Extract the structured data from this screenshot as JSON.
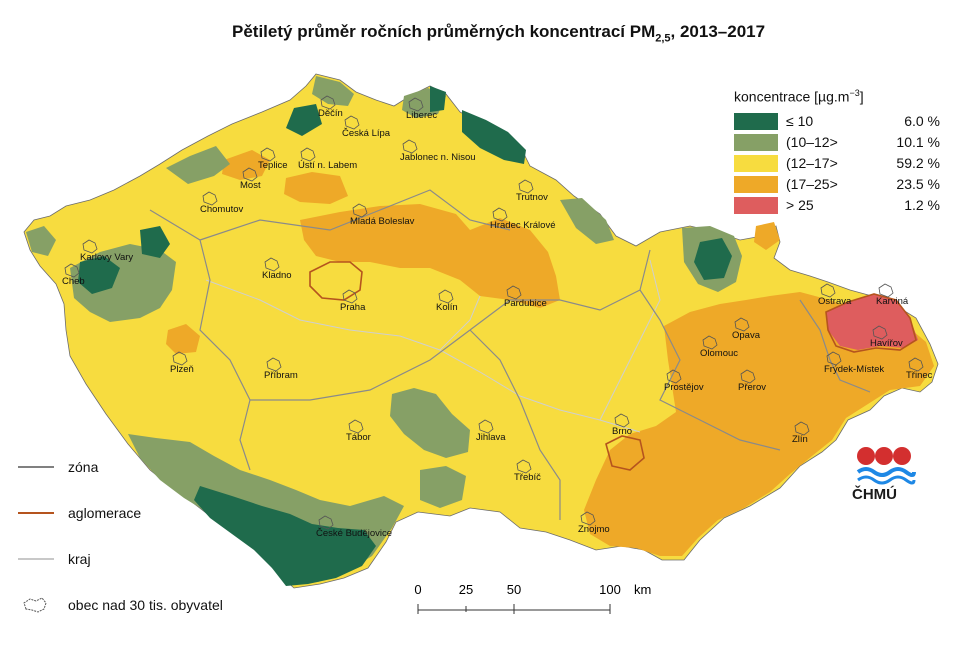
{
  "title": {
    "main": "Pětiletý průměr ročních průměrných koncentrací PM",
    "sub": "2,5",
    "tail": ", 2013–2017"
  },
  "legend": {
    "heading_pre": "koncentrace [µg.m",
    "heading_exp": "−3",
    "heading_post": "]",
    "items": [
      {
        "label": "≤ 10",
        "pct": "6.0 %",
        "color": "#1f6b4c"
      },
      {
        "label": "(10–12>",
        "pct": "10.1 %",
        "color": "#86a066"
      },
      {
        "label": "(12–17>",
        "pct": "59.2 %",
        "color": "#f7dc3f"
      },
      {
        "label": "(17–25>",
        "pct": "23.5 %",
        "color": "#eea928"
      },
      {
        "label": "> 25",
        "pct": "1.2 %",
        "color": "#de5d5e"
      }
    ]
  },
  "lines_legend": [
    {
      "label": "zóna",
      "color": "#808080"
    },
    {
      "label": "aglomerace",
      "color": "#b5541e"
    },
    {
      "label": "kraj",
      "color": "#c8c8c8"
    },
    {
      "label": "obec nad 30 tis. obyvatel",
      "color": "#555555"
    }
  ],
  "logo_text": "ČHMÚ",
  "scale": {
    "ticks": [
      "0",
      "25",
      "50",
      "100"
    ],
    "unit": "km"
  },
  "cities": [
    {
      "name": "Děčín"
    },
    {
      "name": "Liberec"
    },
    {
      "name": "Česká Lípa"
    },
    {
      "name": "Teplice"
    },
    {
      "name": "Ústí n. Labem"
    },
    {
      "name": "Jablonec n. Nisou"
    },
    {
      "name": "Most"
    },
    {
      "name": "Chomutov"
    },
    {
      "name": "Trutnov"
    },
    {
      "name": "Mladá Boleslav"
    },
    {
      "name": "Hradec Králové"
    },
    {
      "name": "Karlovy Vary"
    },
    {
      "name": "Cheb"
    },
    {
      "name": "Kladno"
    },
    {
      "name": "Praha"
    },
    {
      "name": "Kolín"
    },
    {
      "name": "Pardubice"
    },
    {
      "name": "Opava"
    },
    {
      "name": "Ostrava"
    },
    {
      "name": "Karviná"
    },
    {
      "name": "Havířov"
    },
    {
      "name": "Olomouc"
    },
    {
      "name": "Plzeň"
    },
    {
      "name": "Příbram"
    },
    {
      "name": "Frýdek-Místek"
    },
    {
      "name": "Třinec"
    },
    {
      "name": "Prostějov"
    },
    {
      "name": "Přerov"
    },
    {
      "name": "Tábor"
    },
    {
      "name": "Jihlava"
    },
    {
      "name": "Brno"
    },
    {
      "name": "Zlín"
    },
    {
      "name": "Třebíč"
    },
    {
      "name": "České Budějovice"
    },
    {
      "name": "Znojmo"
    }
  ]
}
